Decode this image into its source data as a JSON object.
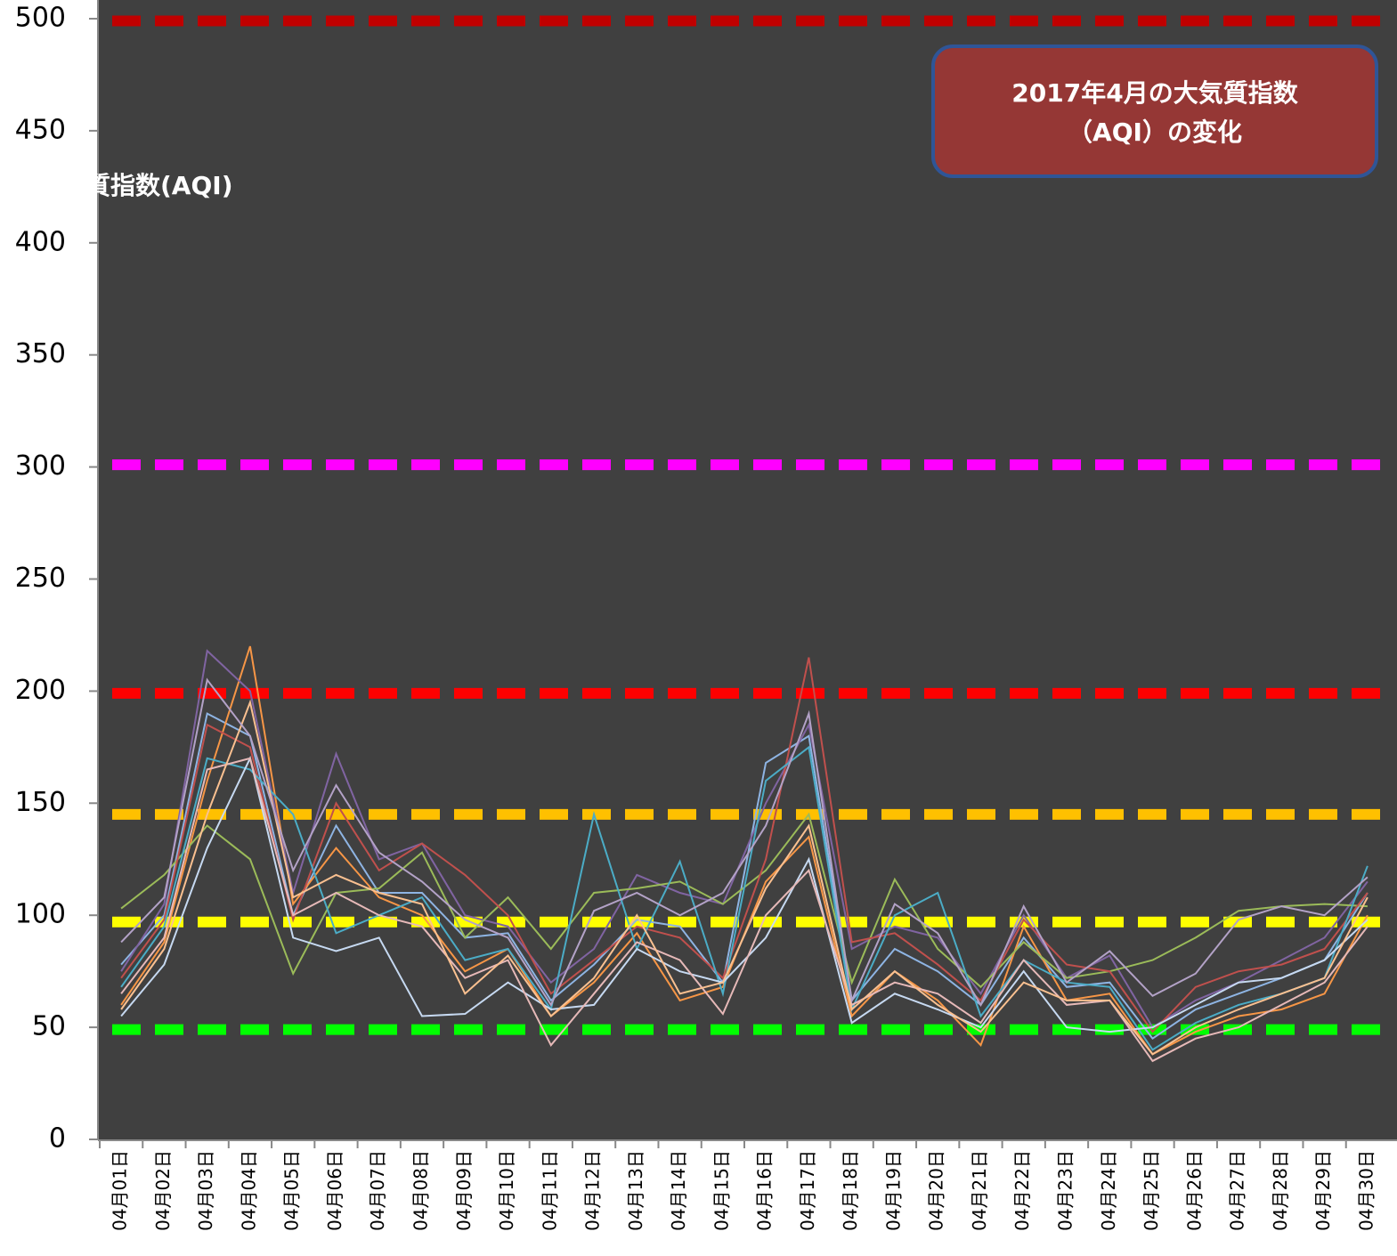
{
  "chart_data": {
    "type": "line",
    "title": [
      "2017年4月の大気質指数",
      "（AQI）の変化"
    ],
    "y_label": "大気質指数(AQI)",
    "categories": [
      "04月01日",
      "04月02日",
      "04月03日",
      "04月04日",
      "04月05日",
      "04月06日",
      "04月07日",
      "04月08日",
      "04月09日",
      "04月10日",
      "04月11日",
      "04月12日",
      "04月13日",
      "04月14日",
      "04月15日",
      "04月16日",
      "04月17日",
      "04月18日",
      "04月19日",
      "04月20日",
      "04月21日",
      "04月22日",
      "04月23日",
      "04月24日",
      "04月25日",
      "04月26日",
      "04月27日",
      "04月28日",
      "04月29日",
      "04月30日"
    ],
    "ylim": [
      0,
      500
    ],
    "yticks": [
      0,
      50,
      100,
      150,
      200,
      250,
      300,
      350,
      400,
      450,
      500
    ],
    "reference_lines": [
      {
        "value": 49,
        "color": "#00ff00"
      },
      {
        "value": 97,
        "color": "#ffff00"
      },
      {
        "value": 145,
        "color": "#ffc000"
      },
      {
        "value": 199,
        "color": "#ff0000"
      },
      {
        "value": 301,
        "color": "#ff00ff"
      },
      {
        "value": 499,
        "color": "#c00000"
      }
    ],
    "series": [
      {
        "color": "#8eb4e3",
        "values": [
          78,
          100,
          190,
          180,
          100,
          140,
          110,
          110,
          90,
          92,
          62,
          78,
          98,
          95,
          70,
          168,
          180,
          62,
          85,
          75,
          60,
          90,
          68,
          70,
          45,
          58,
          65,
          72,
          80,
          110
        ]
      },
      {
        "color": "#f79646",
        "values": [
          60,
          88,
          160,
          220,
          105,
          130,
          108,
          100,
          75,
          85,
          55,
          70,
          92,
          62,
          68,
          115,
          135,
          55,
          75,
          62,
          42,
          95,
          62,
          65,
          38,
          48,
          55,
          58,
          65,
          100
        ]
      },
      {
        "color": "#8064a2",
        "values": [
          75,
          105,
          218,
          200,
          110,
          172,
          125,
          132,
          100,
          95,
          70,
          85,
          118,
          110,
          105,
          150,
          185,
          85,
          95,
          90,
          65,
          100,
          72,
          82,
          50,
          62,
          70,
          80,
          90,
          115
        ]
      },
      {
        "color": "#9bbb59",
        "values": [
          103,
          118,
          140,
          125,
          74,
          110,
          112,
          128,
          90,
          108,
          85,
          110,
          112,
          115,
          105,
          120,
          145,
          70,
          116,
          85,
          68,
          88,
          72,
          75,
          80,
          90,
          102,
          104,
          105,
          104
        ]
      },
      {
        "color": "#c0504d",
        "values": [
          72,
          98,
          185,
          175,
          98,
          150,
          120,
          132,
          118,
          100,
          65,
          80,
          95,
          90,
          72,
          125,
          215,
          88,
          92,
          78,
          62,
          98,
          78,
          75,
          48,
          68,
          75,
          78,
          85,
          110
        ]
      },
      {
        "color": "#4bacc6",
        "values": [
          68,
          95,
          170,
          165,
          145,
          92,
          100,
          108,
          80,
          85,
          58,
          145,
          85,
          124,
          65,
          160,
          175,
          58,
          100,
          110,
          55,
          80,
          70,
          68,
          40,
          52,
          60,
          65,
          72,
          122
        ]
      },
      {
        "color": "#c6d9f1",
        "values": [
          55,
          78,
          130,
          170,
          90,
          84,
          90,
          55,
          56,
          70,
          58,
          60,
          85,
          75,
          70,
          90,
          125,
          52,
          65,
          58,
          50,
          75,
          50,
          48,
          50,
          60,
          70,
          72,
          80,
          98
        ]
      },
      {
        "color": "#e6b9b8",
        "values": [
          65,
          90,
          165,
          170,
          100,
          110,
          100,
          95,
          72,
          80,
          42,
          65,
          88,
          80,
          56,
          100,
          120,
          60,
          70,
          65,
          52,
          80,
          60,
          62,
          35,
          45,
          50,
          60,
          70,
          95
        ]
      },
      {
        "color": "#fac090",
        "values": [
          58,
          85,
          145,
          195,
          108,
          118,
          110,
          105,
          65,
          82,
          55,
          72,
          100,
          65,
          70,
          112,
          140,
          58,
          75,
          60,
          48,
          70,
          62,
          62,
          38,
          50,
          58,
          65,
          72,
          108
        ]
      },
      {
        "color": "#b3a2c7",
        "values": [
          88,
          108,
          205,
          180,
          120,
          158,
          128,
          115,
          98,
          90,
          60,
          102,
          110,
          100,
          110,
          140,
          190,
          62,
          105,
          92,
          60,
          104,
          70,
          84,
          64,
          74,
          98,
          104,
          100,
          117
        ]
      }
    ]
  }
}
